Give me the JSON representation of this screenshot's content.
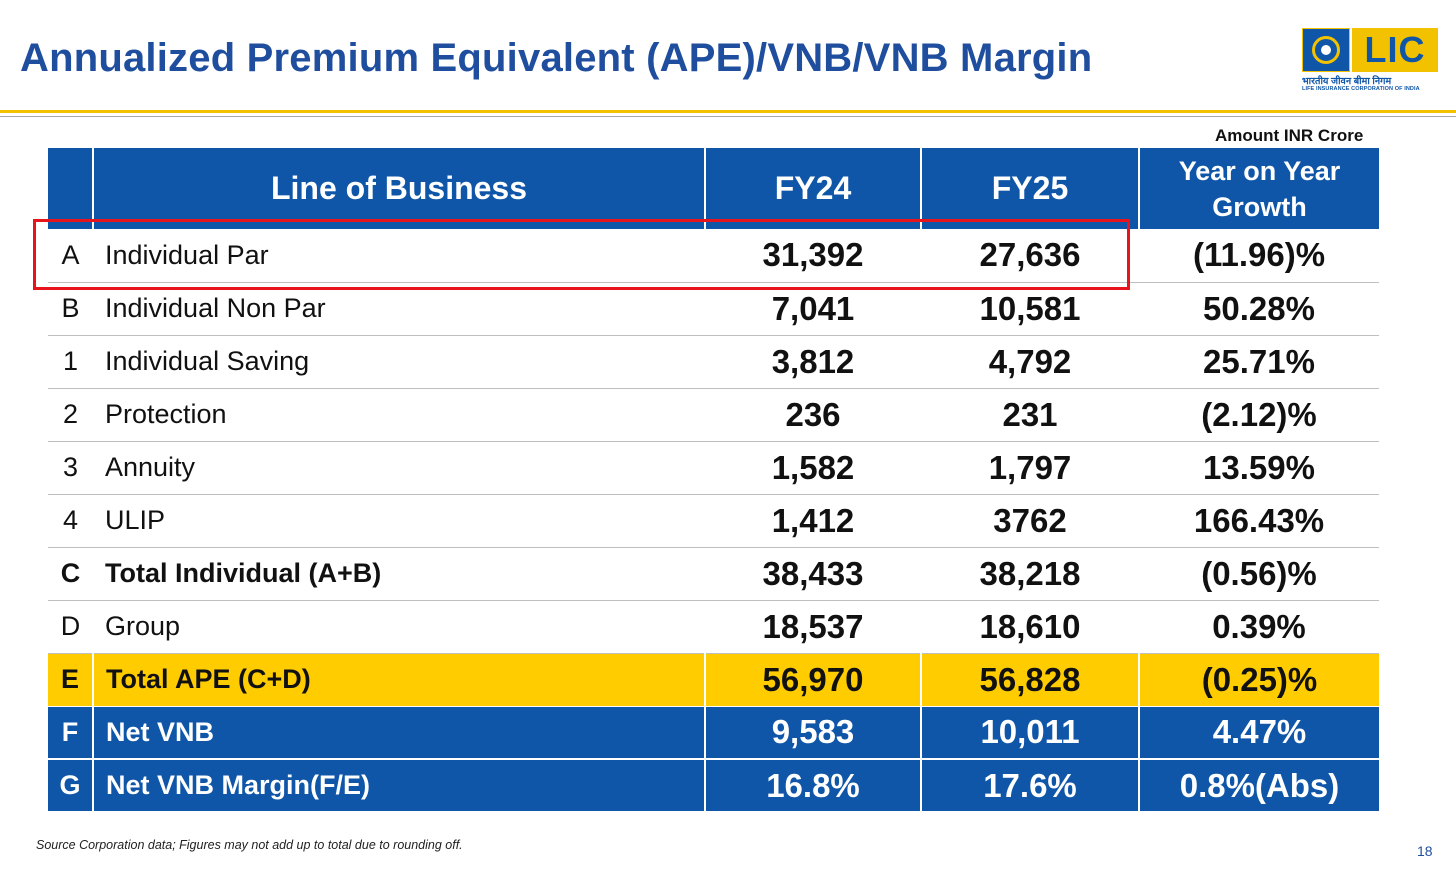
{
  "title": "Annualized Premium Equivalent (APE)/VNB/VNB Margin",
  "logo": {
    "brand": "LIC",
    "hindi": "भारतीय जीवन बीमा निगम",
    "english": "LIFE INSURANCE CORPORATION OF INDIA"
  },
  "unit_note": "Amount INR Crore",
  "table": {
    "headers": {
      "line": "Line of Business",
      "fy24": "FY24",
      "fy25": "FY25",
      "growth": "Year on Year Growth"
    },
    "rows": [
      {
        "code": "A",
        "name": "Individual Par",
        "fy24": "31,392",
        "fy25": "27,636",
        "growth": "(11.96)%"
      },
      {
        "code": "B",
        "name": "Individual Non Par",
        "fy24": "7,041",
        "fy25": "10,581",
        "growth": "50.28%"
      },
      {
        "code": "1",
        "name": "Individual Saving",
        "fy24": "3,812",
        "fy25": "4,792",
        "growth": "25.71%"
      },
      {
        "code": "2",
        "name": "Protection",
        "fy24": "236",
        "fy25": "231",
        "growth": "(2.12)%"
      },
      {
        "code": "3",
        "name": "Annuity",
        "fy24": "1,582",
        "fy25": "1,797",
        "growth": "13.59%"
      },
      {
        "code": "4",
        "name": "ULIP",
        "fy24": "1,412",
        "fy25": "3762",
        "growth": "166.43%"
      },
      {
        "code": "C",
        "name": "Total Individual (A+B)",
        "fy24": "38,433",
        "fy25": "38,218",
        "growth": "(0.56)%"
      },
      {
        "code": "D",
        "name": "Group",
        "fy24": "18,537",
        "fy25": "18,610",
        "growth": "0.39%"
      },
      {
        "code": "E",
        "name": "Total APE (C+D)",
        "fy24": "56,970",
        "fy25": "56,828",
        "growth": "(0.25)%"
      },
      {
        "code": "F",
        "name": "Net VNB",
        "fy24": "9,583",
        "fy25": "10,011",
        "growth": "4.47%"
      },
      {
        "code": "G",
        "name": "Net VNB Margin(F/E)",
        "fy24": "16.8%",
        "fy25": "17.6%",
        "growth": "0.8%(Abs)"
      }
    ]
  },
  "source_note": "Source Corporation data; Figures may not add up to total due to rounding off.",
  "page_number": "18",
  "colors": {
    "brand_blue": "#0f56a8",
    "title_blue": "#1f4e9e",
    "highlight_yellow": "#ffcc00",
    "annotation_red": "#e8141c"
  }
}
